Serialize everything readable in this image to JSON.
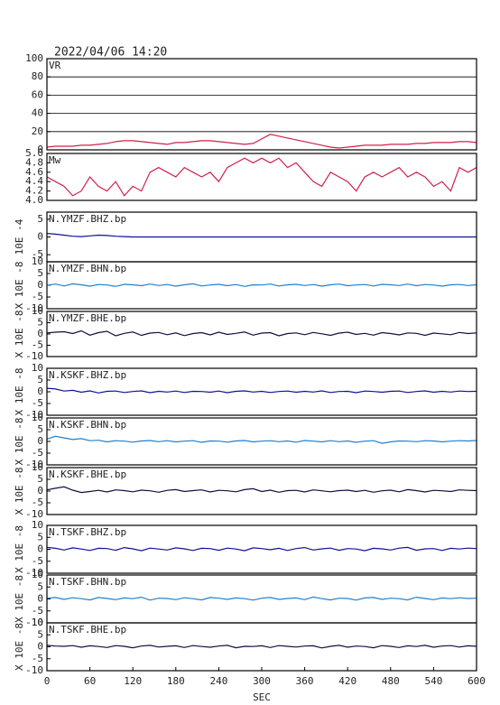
{
  "chart_data": {
    "type": "line",
    "title": "2022/04/06 14:20",
    "xlabel": "SEC",
    "x": [
      0,
      12,
      24,
      36,
      48,
      60,
      72,
      84,
      96,
      108,
      120,
      132,
      144,
      156,
      168,
      180,
      192,
      204,
      216,
      228,
      240,
      252,
      264,
      276,
      288,
      300,
      312,
      324,
      336,
      348,
      360,
      372,
      384,
      396,
      408,
      420,
      432,
      444,
      456,
      468,
      480,
      492,
      504,
      516,
      528,
      540,
      552,
      564,
      576,
      588,
      600
    ],
    "xlim": [
      0,
      600
    ],
    "xticks": [
      0,
      60,
      120,
      180,
      240,
      300,
      360,
      420,
      480,
      540,
      600
    ],
    "panels": [
      {
        "label": "VR",
        "color": "#d0204a",
        "grid": true,
        "ylim": [
          0,
          100
        ],
        "yticks": [
          0,
          20,
          40,
          60,
          80,
          100
        ],
        "values": [
          3,
          4,
          4,
          4,
          5,
          5,
          6,
          7,
          9,
          10,
          10,
          9,
          8,
          7,
          6,
          8,
          8,
          9,
          10,
          10,
          9,
          8,
          7,
          6,
          7,
          12,
          17,
          15,
          13,
          11,
          9,
          7,
          5,
          3,
          2,
          3,
          4,
          5,
          5,
          5,
          6,
          6,
          6,
          7,
          7,
          8,
          8,
          8,
          9,
          9,
          8
        ]
      },
      {
        "label": "Mw",
        "color": "#d0204a",
        "grid": false,
        "ylim": [
          4,
          5
        ],
        "yticks": [
          {
            "value": 4,
            "label": "4.0"
          },
          4.2,
          4.4,
          4.6,
          4.8,
          {
            "value": 5,
            "label": "5.0"
          }
        ],
        "values": [
          4.5,
          4.4,
          4.3,
          4.1,
          4.2,
          4.5,
          4.3,
          4.2,
          4.4,
          4.1,
          4.3,
          4.2,
          4.6,
          4.7,
          4.6,
          4.5,
          4.7,
          4.6,
          4.5,
          4.6,
          4.4,
          4.7,
          4.8,
          4.9,
          4.8,
          4.9,
          4.8,
          4.9,
          4.7,
          4.8,
          4.6,
          4.4,
          4.3,
          4.6,
          4.5,
          4.4,
          4.2,
          4.5,
          4.6,
          4.5,
          4.6,
          4.7,
          4.5,
          4.6,
          4.5,
          4.3,
          4.4,
          4.2,
          4.7,
          4.6,
          4.7
        ]
      },
      {
        "label": "N.YMZF.BHZ.bp",
        "ylabel": "10E -4",
        "color": "#10109a",
        "grid": false,
        "ylim": [
          -7,
          7
        ],
        "yticks": [
          -5,
          0,
          5
        ],
        "values": [
          1,
          0.8,
          0.5,
          0.2,
          0.1,
          0.3,
          0.5,
          0.4,
          0.2,
          0.1,
          0,
          0,
          0,
          0,
          0,
          0,
          0,
          0,
          0,
          0,
          0,
          0,
          0,
          0,
          0,
          0,
          0,
          0,
          0,
          0,
          0,
          0,
          0,
          0,
          0,
          0,
          0,
          0,
          0,
          0,
          0,
          0,
          0,
          0,
          0,
          0,
          0,
          0,
          0,
          0,
          0
        ]
      },
      {
        "label": "N.YMZF.BHN.bp",
        "ylabel": "X 10E -8",
        "color": "#2080d0",
        "grid": false,
        "ylim": [
          -10,
          10
        ],
        "yticks": [
          -10,
          -5,
          0,
          5,
          10
        ],
        "values": [
          0,
          0.5,
          -0.3,
          0.6,
          0.2,
          -0.4,
          0.3,
          0.1,
          -0.5,
          0.4,
          0.2,
          -0.2,
          0.5,
          -0.1,
          0.3,
          -0.4,
          0.2,
          0.6,
          -0.3,
          0.1,
          0.4,
          -0.2,
          0.3,
          -0.5,
          0.2,
          0.1,
          0.5,
          -0.3,
          0.2,
          0.4,
          -0.1,
          0.3,
          -0.4,
          0.2,
          0.5,
          -0.2,
          0.1,
          0.3,
          -0.3,
          0.4,
          0.2,
          -0.1,
          0.5,
          -0.2,
          0.3,
          0.1,
          -0.4,
          0.2,
          0.3,
          -0.1,
          0.2
        ]
      },
      {
        "label": "N.YMZF.BHE.bp",
        "ylabel": "X 10E -8",
        "color": "#101040",
        "grid": false,
        "ylim": [
          -10,
          10
        ],
        "yticks": [
          -10,
          -5,
          0,
          5,
          10
        ],
        "values": [
          0.5,
          0.8,
          1,
          0.2,
          1.4,
          -0.5,
          0.6,
          1.2,
          -0.8,
          0.3,
          0.9,
          -0.6,
          0.4,
          0.7,
          -0.3,
          0.5,
          -0.7,
          0.2,
          0.6,
          -0.4,
          0.8,
          -0.2,
          0.3,
          0.9,
          -0.5,
          0.4,
          0.6,
          -0.8,
          0.2,
          0.5,
          -0.3,
          0.7,
          0.1,
          -0.6,
          0.4,
          0.8,
          -0.2,
          0.3,
          -0.5,
          0.6,
          0.2,
          -0.4,
          0.5,
          0.3,
          -0.6,
          0.4,
          0.1,
          -0.3,
          0.7,
          0.2,
          0.5
        ]
      },
      {
        "label": "N.KSKF.BHZ.bp",
        "ylabel": "X 10E -8",
        "color": "#10109a",
        "grid": false,
        "ylim": [
          -10,
          10
        ],
        "yticks": [
          -10,
          -5,
          0,
          5,
          10
        ],
        "values": [
          1.5,
          1.2,
          0.3,
          0.6,
          -0.2,
          0.4,
          -0.5,
          0.2,
          0.3,
          -0.3,
          0.1,
          0.4,
          -0.4,
          0.2,
          -0.1,
          0.3,
          -0.3,
          0.2,
          0.1,
          -0.2,
          0.3,
          -0.4,
          0.2,
          0.4,
          -0.1,
          0.2,
          -0.3,
          0.1,
          0.3,
          -0.2,
          0.2,
          -0.1,
          0.4,
          -0.3,
          0.1,
          0.2,
          -0.4,
          0.3,
          0.1,
          -0.2,
          0.2,
          0.3,
          -0.3,
          0.1,
          0.4,
          -0.2,
          0.2,
          -0.1,
          0.3,
          0.1,
          0.2
        ]
      },
      {
        "label": "N.KSKF.BHN.bp",
        "ylabel": "X 10E -8",
        "color": "#2080d0",
        "grid": false,
        "ylim": [
          -10,
          10
        ],
        "yticks": [
          -10,
          -5,
          0,
          5,
          10
        ],
        "values": [
          1,
          2.2,
          1.5,
          0.8,
          1.2,
          0.3,
          0.5,
          -0.2,
          0.3,
          0.1,
          -0.3,
          0.2,
          0.4,
          -0.1,
          0.3,
          -0.2,
          0.1,
          0.3,
          -0.4,
          0.2,
          0.1,
          -0.3,
          0.2,
          0.4,
          -0.2,
          0.1,
          0.3,
          -0.1,
          0.2,
          -0.3,
          0.4,
          0.1,
          -0.2,
          0.3,
          -0.1,
          0.2,
          -0.4,
          0.1,
          0.3,
          -0.8,
          -0.2,
          0.2,
          0.1,
          -0.1,
          0.3,
          0.2,
          -0.2,
          0.1,
          0.3,
          0.2,
          0.4
        ]
      },
      {
        "label": "N.KSKF.BHE.bp",
        "ylabel": "X 10E -8",
        "color": "#101040",
        "grid": false,
        "ylim": [
          -10,
          10
        ],
        "yticks": [
          -10,
          -5,
          0,
          5,
          10
        ],
        "values": [
          0.5,
          1.2,
          1.8,
          0.4,
          -0.6,
          -0.2,
          0.3,
          -0.4,
          0.5,
          0.2,
          -0.3,
          0.4,
          0.1,
          -0.5,
          0.3,
          0.6,
          -0.2,
          0.2,
          0.5,
          -0.4,
          0.3,
          0.1,
          -0.3,
          0.6,
          1,
          -0.2,
          0.4,
          -0.5,
          0.2,
          0.3,
          -0.4,
          0.5,
          0.1,
          -0.3,
          0.2,
          0.4,
          -0.2,
          0.3,
          -0.5,
          0.1,
          0.4,
          -0.3,
          0.6,
          0.2,
          -0.4,
          0.3,
          0.1,
          -0.2,
          0.5,
          0.3,
          0.2
        ]
      },
      {
        "label": "N.TSKF.BHZ.bp",
        "ylabel": "X 10E -8",
        "color": "#10109a",
        "grid": false,
        "ylim": [
          -10,
          10
        ],
        "yticks": [
          -10,
          -5,
          0,
          5,
          10
        ],
        "values": [
          0.8,
          0.4,
          -0.3,
          0.6,
          0.1,
          -0.5,
          0.4,
          0.3,
          -0.4,
          0.7,
          0.2,
          -0.6,
          0.5,
          0.1,
          -0.3,
          0.6,
          0.2,
          -0.5,
          0.4,
          0.3,
          -0.4,
          0.5,
          0.1,
          -0.6,
          0.6,
          0.3,
          -0.2,
          0.4,
          -0.5,
          0.3,
          0.7,
          -0.3,
          0.2,
          0.5,
          -0.4,
          0.3,
          0.1,
          -0.6,
          0.4,
          0.2,
          -0.3,
          0.5,
          0.8,
          -0.4,
          0.2,
          0.3,
          -0.5,
          0.4,
          0.1,
          0.5,
          0.3
        ]
      },
      {
        "label": "N.TSKF.BHN.bp",
        "ylabel": "X 10E -8",
        "color": "#2080d0",
        "grid": false,
        "ylim": [
          -10,
          10
        ],
        "yticks": [
          -10,
          -5,
          0,
          5,
          10
        ],
        "values": [
          0.3,
          0.6,
          -0.2,
          0.5,
          0.1,
          -0.4,
          0.6,
          0.2,
          -0.3,
          0.4,
          0.1,
          0.7,
          -0.5,
          0.3,
          0.2,
          -0.3,
          0.5,
          0.1,
          -0.4,
          0.6,
          0.3,
          -0.2,
          0.4,
          0.1,
          -0.5,
          0.3,
          0.6,
          -0.2,
          0.2,
          0.4,
          -0.3,
          0.8,
          0.1,
          -0.4,
          0.3,
          0.2,
          -0.5,
          0.4,
          0.6,
          -0.2,
          0.3,
          0.1,
          -0.4,
          0.7,
          0.2,
          -0.3,
          0.4,
          0.1,
          0.5,
          0.2,
          0.3
        ]
      },
      {
        "label": "N.TSKF.BHE.bp",
        "ylabel": "X 10E -8",
        "color": "#101040",
        "grid": false,
        "ylim": [
          -10,
          10
        ],
        "yticks": [
          -10,
          -5,
          0,
          5,
          10
        ],
        "values": [
          0.6,
          0.3,
          0.2,
          0.5,
          -0.2,
          0.4,
          0.1,
          -0.3,
          0.5,
          0.2,
          -0.4,
          0.3,
          0.6,
          -0.1,
          0.2,
          0.4,
          -0.3,
          0.5,
          0.1,
          -0.2,
          0.3,
          0.6,
          -0.4,
          0.2,
          0.1,
          0.4,
          -0.3,
          0.5,
          0.2,
          -0.1,
          0.3,
          0.4,
          -0.5,
          0.2,
          0.6,
          -0.2,
          0.3,
          0.1,
          -0.4,
          0.5,
          0.2,
          -0.3,
          0.4,
          0.1,
          0.6,
          -0.2,
          0.3,
          0.5,
          -0.1,
          0.4,
          0.2
        ]
      }
    ]
  }
}
